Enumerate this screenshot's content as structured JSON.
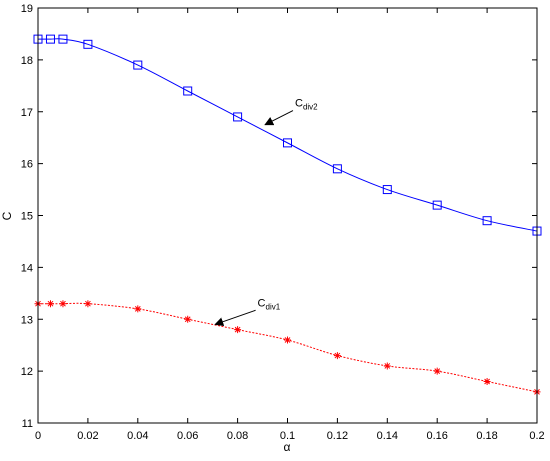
{
  "chart_data": {
    "type": "line",
    "title": "",
    "xlabel": "α",
    "ylabel": "C",
    "xlim": [
      0,
      0.2
    ],
    "ylim": [
      11,
      19
    ],
    "xticks": [
      0,
      0.02,
      0.04,
      0.06,
      0.08,
      0.1,
      0.12,
      0.14,
      0.16,
      0.18,
      0.2
    ],
    "xtick_labels": [
      "0",
      "0.02",
      "0.04",
      "0.06",
      "0.08",
      "0.1",
      "0.12",
      "0.14",
      "0.16",
      "0.18",
      "0.2"
    ],
    "yticks": [
      11,
      12,
      13,
      14,
      15,
      16,
      17,
      18,
      19
    ],
    "ytick_labels": [
      "11",
      "12",
      "13",
      "14",
      "15",
      "16",
      "17",
      "18",
      "19"
    ],
    "grid": false,
    "series": [
      {
        "color": "#0000ff",
        "marker": "square",
        "line_style": "solid",
        "x": [
          0,
          0.005,
          0.01,
          0.02,
          0.04,
          0.06,
          0.08,
          0.1,
          0.12,
          0.14,
          0.16,
          0.18,
          0.2
        ],
        "y": [
          18.4,
          18.4,
          18.4,
          18.3,
          17.9,
          17.4,
          16.9,
          16.4,
          15.9,
          15.5,
          15.2,
          14.9,
          14.7
        ]
      },
      {
        "color": "#ff0000",
        "marker": "star",
        "line_style": "dashed",
        "x": [
          0,
          0.005,
          0.01,
          0.02,
          0.04,
          0.06,
          0.08,
          0.1,
          0.12,
          0.14,
          0.16,
          0.18,
          0.2
        ],
        "y": [
          13.3,
          13.3,
          13.3,
          13.3,
          13.2,
          13.0,
          12.8,
          12.6,
          12.3,
          12.1,
          12.0,
          11.8,
          11.6
        ]
      }
    ],
    "annotations": [
      {
        "text_main": "C",
        "text_sub": "div2",
        "text_x": 0.103,
        "text_y": 17.1,
        "arrow_x": 0.091,
        "arrow_y": 16.75
      },
      {
        "text_main": "C",
        "text_sub": "div1",
        "text_x": 0.088,
        "text_y": 13.25,
        "arrow_x": 0.071,
        "arrow_y": 12.9
      }
    ]
  }
}
